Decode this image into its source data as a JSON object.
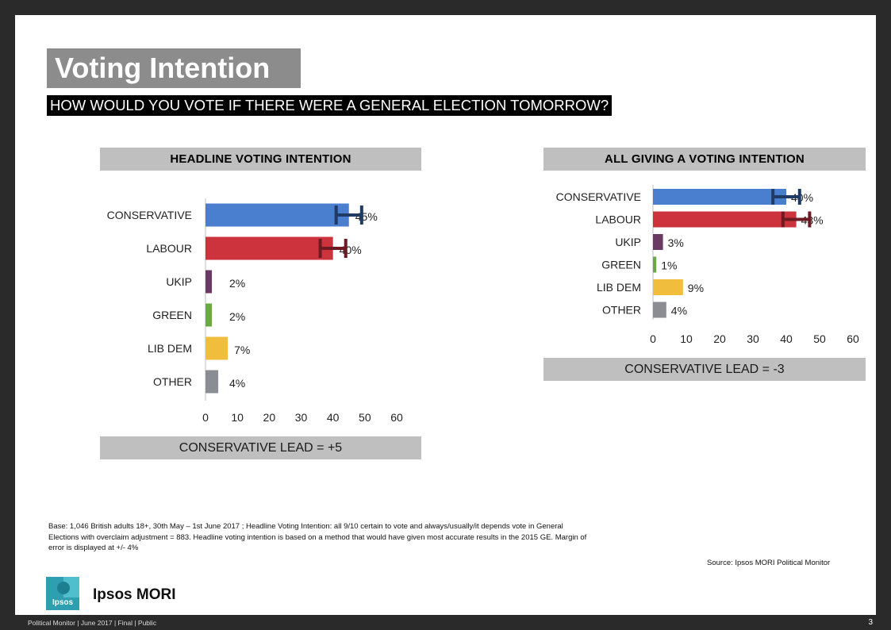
{
  "title": "Voting Intention",
  "subtitle": "HOW WOULD YOU VOTE IF THERE WERE A GENERAL ELECTION TOMORROW?",
  "chart_data": [
    {
      "type": "bar",
      "orientation": "horizontal",
      "title": "HEADLINE VOTING INTENTION",
      "categories": [
        "CONSERVATIVE",
        "LABOUR",
        "UKIP",
        "GREEN",
        "LIB DEM",
        "OTHER"
      ],
      "values": [
        45,
        40,
        2,
        2,
        7,
        4
      ],
      "value_labels": [
        "45%",
        "40%",
        "2%",
        "2%",
        "7%",
        "4%"
      ],
      "colors": [
        "#4a7fcf",
        "#cc333d",
        "#6b3a62",
        "#6aaa45",
        "#f0be3c",
        "#8a8d92"
      ],
      "error_bars": [
        {
          "index": 0,
          "margin": 4,
          "color": "#1f3a63"
        },
        {
          "index": 1,
          "margin": 4,
          "color": "#6e1a23"
        }
      ],
      "xlim": [
        0,
        60
      ],
      "xticks": [
        "0",
        "10",
        "20",
        "30",
        "40",
        "50",
        "60"
      ],
      "lead": "CONSERVATIVE LEAD = +5"
    },
    {
      "type": "bar",
      "orientation": "horizontal",
      "title": "ALL GIVING A VOTING INTENTION",
      "categories": [
        "CONSERVATIVE",
        "LABOUR",
        "UKIP",
        "GREEN",
        "LIB DEM",
        "OTHER"
      ],
      "values": [
        40,
        43,
        3,
        1,
        9,
        4
      ],
      "value_labels": [
        "40%",
        "43%",
        "3%",
        "1%",
        "9%",
        "4%"
      ],
      "colors": [
        "#4a7fcf",
        "#cc333d",
        "#6b3a62",
        "#6aaa45",
        "#f0be3c",
        "#8a8d92"
      ],
      "error_bars": [
        {
          "index": 0,
          "margin": 4,
          "color": "#1f3a63"
        },
        {
          "index": 1,
          "margin": 4,
          "color": "#6e1a23"
        }
      ],
      "xlim": [
        0,
        60
      ],
      "xticks": [
        "0",
        "10",
        "20",
        "30",
        "40",
        "50",
        "60"
      ],
      "lead": "CONSERVATIVE LEAD = -3"
    }
  ],
  "footnote": "Base: 1,046 British adults 18+, 30th May – 1st June 2017 ; Headline Voting Intention: all 9/10 certain to vote and always/usually/it depends vote in General Elections with overclaim adjustment = 883. Headline voting intention is based on a method that would have given most accurate results in the 2015 GE. Margin of error is displayed at +/- 4%",
  "source": "Source: Ipsos MORI Political Monitor",
  "logo": {
    "text": "Ipsos",
    "brand": "Ipsos MORI"
  },
  "footer": {
    "left": "Political Monitor | June 2017 | Final | Public",
    "page": "3"
  }
}
